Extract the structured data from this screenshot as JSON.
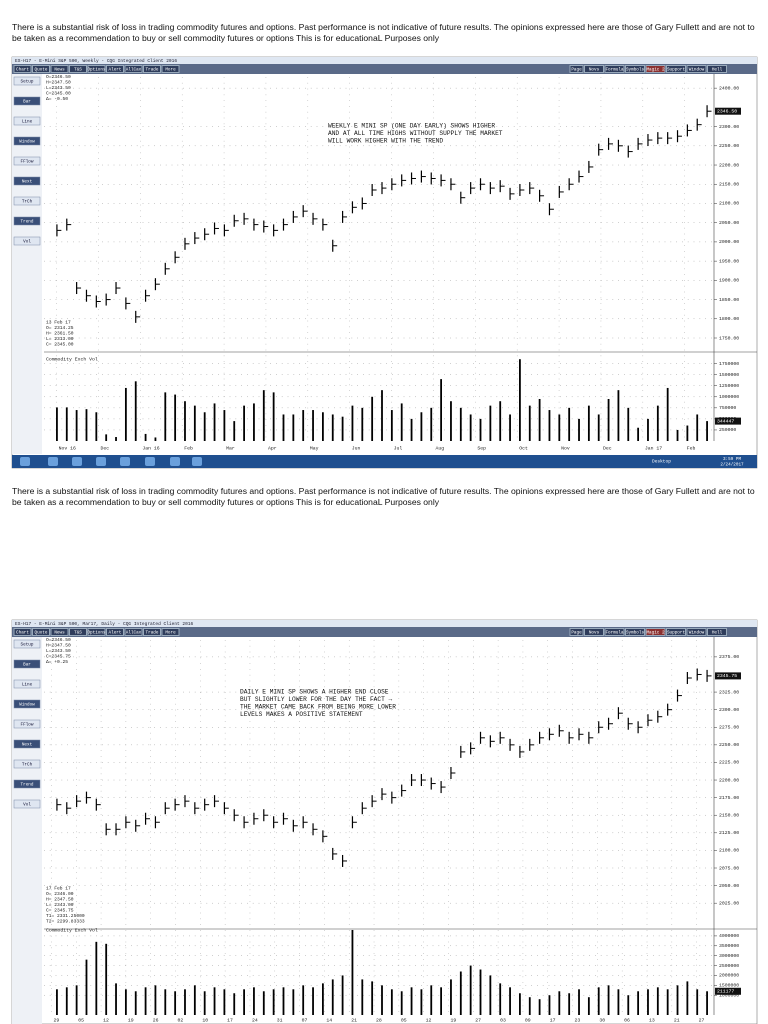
{
  "disclaimers": [
    "There is a substantial risk of loss in trading commodity futures and options.  Past performance is not indicative of future results.  The opinions expressed here are those of Gary Fullett and are not to be taken as a recommendation to buy or sell commodity futures or options  This is for educationaL Purposes only",
    "There is a substantial risk of loss in trading commodity futures and options.  Past performance is not indicative of future results.  The opinions expressed here are those of Gary Fullett and are not to be taken as a recommendation to buy or sell commodity futures or options  This is for educationaL Purposes only"
  ],
  "toolbar_left": [
    "Chart",
    "Quote",
    "News",
    "T&S",
    "Options",
    "Alert",
    "AllCax",
    "Trade",
    "More"
  ],
  "toolbar_right": [
    "Page",
    "Novs",
    "Formula",
    "Symbols",
    "Magic 2",
    "Support",
    "Window",
    "Hell"
  ],
  "side_buttons": [
    "Setup",
    "Bar",
    "Line",
    "Window",
    "FFlow",
    "Next",
    "TrCh",
    "Trend",
    "Vol"
  ],
  "taskbar": {
    "desktop": "Desktop",
    "time": "3:59 PM",
    "date": "2/24/2017"
  },
  "chart_data": [
    {
      "type": "stock",
      "title": "ES-H17 - E-Mini S&P 500, Weekly - CQG Integrated Client 2016",
      "annotation": [
        "WEEKLY E MINI SP (ONE DAY EARLY) SHOWS HIGHER",
        "AND AT ALL TIME HIGHS WITHOUT SUPPLY THE MARKET",
        "WILL WORK HIGHER WITH THE TREND"
      ],
      "info": [
        "O=2346.50",
        "H=2347.50",
        "L=2343.50",
        "C=2345.00",
        "Δ= -0.50"
      ],
      "info2": [
        "13 Feb 17",
        "O= 2314.25",
        "H= 2361.50",
        "L= 2313.00",
        "C= 2345.00"
      ],
      "last_label": "2346.50",
      "volume_title": "Commodity Exch Vol",
      "volume_last": "344447",
      "x_labels": [
        "Nov 16",
        "Dec",
        "Jan 16",
        "Feb",
        "Mar",
        "Apr",
        "May",
        "Jun",
        "Jul",
        "Aug",
        "Sep",
        "Oct",
        "Nov",
        "Dec",
        "Jan 17",
        "Feb"
      ],
      "color": "#000000",
      "values": [
        2030,
        2045,
        1880,
        1860,
        1845,
        1850,
        1880,
        1840,
        1805,
        1860,
        1890,
        1930,
        1960,
        1995,
        2010,
        2020,
        2035,
        2030,
        2055,
        2060,
        2045,
        2040,
        2030,
        2045,
        2065,
        2080,
        2060,
        2045,
        1990,
        2065,
        2090,
        2100,
        2135,
        2140,
        2150,
        2160,
        2165,
        2170,
        2165,
        2160,
        2150,
        2115,
        2140,
        2150,
        2140,
        2145,
        2125,
        2135,
        2140,
        2120,
        2085,
        2130,
        2150,
        2170,
        2195,
        2240,
        2255,
        2250,
        2235,
        2255,
        2265,
        2270,
        2270,
        2275,
        2290,
        2305,
        2340
      ],
      "volume": [
        760000,
        760000,
        700000,
        720000,
        650000,
        150000,
        90000,
        1200000,
        1350000,
        160000,
        80000,
        1100000,
        1050000,
        900000,
        800000,
        650000,
        850000,
        700000,
        450000,
        800000,
        850000,
        1150000,
        1100000,
        600000,
        600000,
        700000,
        700000,
        650000,
        600000,
        550000,
        800000,
        750000,
        1000000,
        1150000,
        700000,
        850000,
        500000,
        650000,
        750000,
        1400000,
        900000,
        750000,
        600000,
        500000,
        800000,
        900000,
        600000,
        1850000,
        800000,
        950000,
        700000,
        600000,
        750000,
        500000,
        800000,
        600000,
        950000,
        1150000,
        750000,
        300000,
        500000,
        800000,
        1200000,
        250000,
        350000,
        600000,
        450000
      ],
      "ylim": [
        1724,
        2429
      ],
      "yticks": [
        {
          "value": 1750,
          "label": "1750.00"
        },
        {
          "value": 1800,
          "label": "1800.00"
        },
        {
          "value": 1850,
          "label": "1850.00"
        },
        {
          "value": 1900,
          "label": "1900.00"
        },
        {
          "value": 1950,
          "label": "1950.00"
        },
        {
          "value": 2000,
          "label": "2000.00"
        },
        {
          "value": 2050,
          "label": "2050.00"
        },
        {
          "value": 2100,
          "label": "2100.00"
        },
        {
          "value": 2150,
          "label": "2150.00"
        },
        {
          "value": 2200,
          "label": "2200.00"
        },
        {
          "value": 2250,
          "label": "2250.00"
        },
        {
          "value": 2300,
          "label": "2300.00"
        },
        {
          "value": 2400,
          "label": "2400.00"
        }
      ],
      "vol_ylim": [
        0,
        1900000
      ],
      "vol_yticks": [
        250000,
        500000,
        750000,
        1000000,
        1250000,
        1500000,
        1750000
      ],
      "grid": true
    },
    {
      "type": "stock",
      "title": "ES-H17 - E-Mini S&P 500, Mar17, Daily - CQG Integrated Client 2016",
      "annotation": [
        "DAILY E MINI SP SHOWS A HIGHER END CLOSE",
        "BUT SLIGHTLY LOWER FOR THE DAY THE FACT  →",
        "THE MARKET CAME BACK FROM BEING MORE LOWER",
        "LEVELS MAKES A POSITIVE STATEMENT"
      ],
      "info": [
        "O=2346.50",
        "H=2347.50",
        "L=2343.50",
        "C=2345.75",
        "Δ= +0.25"
      ],
      "info2": [
        "17 Feb 17",
        "O=    2346.00",
        "H=    2347.50",
        "L=    2343.00",
        "C=    2345.75",
        "T1=  2331.25000",
        "T2=  2299.83333"
      ],
      "last_label": "2345.75",
      "volume_title": "Commodity Exch Vol",
      "volume_last": "211177",
      "x_labels": [
        "29",
        "05",
        "12",
        "19",
        "26",
        "02",
        "10",
        "17",
        "24",
        "31",
        "07",
        "14",
        "21",
        "28",
        "05",
        "12",
        "19",
        "27",
        "03",
        "09",
        "17",
        "23",
        "30",
        "06",
        "13",
        "21",
        "27"
      ],
      "color": "#000000",
      "values": [
        2165,
        2160,
        2170,
        2175,
        2165,
        2130,
        2130,
        2140,
        2135,
        2145,
        2140,
        2160,
        2165,
        2170,
        2160,
        2165,
        2170,
        2160,
        2150,
        2140,
        2145,
        2150,
        2140,
        2145,
        2135,
        2140,
        2130,
        2120,
        2095,
        2085,
        2140,
        2160,
        2170,
        2180,
        2175,
        2185,
        2200,
        2200,
        2195,
        2190,
        2210,
        2240,
        2245,
        2260,
        2255,
        2260,
        2250,
        2240,
        2250,
        2260,
        2265,
        2270,
        2260,
        2265,
        2260,
        2275,
        2280,
        2295,
        2280,
        2275,
        2285,
        2290,
        2300,
        2320,
        2345,
        2350,
        2348
      ],
      "volume": [
        1300000,
        1400000,
        1500000,
        2800000,
        3700000,
        3600000,
        1600000,
        1300000,
        1200000,
        1400000,
        1500000,
        1300000,
        1200000,
        1300000,
        1500000,
        1200000,
        1400000,
        1300000,
        1100000,
        1300000,
        1400000,
        1200000,
        1300000,
        1400000,
        1300000,
        1500000,
        1400000,
        1600000,
        1800000,
        2000000,
        4300000,
        1800000,
        1700000,
        1500000,
        1300000,
        1200000,
        1400000,
        1300000,
        1500000,
        1400000,
        1800000,
        2200000,
        2500000,
        2300000,
        2000000,
        1600000,
        1400000,
        1100000,
        900000,
        800000,
        1000000,
        1200000,
        1100000,
        1300000,
        900000,
        1400000,
        1500000,
        1300000,
        1000000,
        1200000,
        1300000,
        1400000,
        1300000,
        1500000,
        1700000,
        1300000,
        1200000
      ],
      "ylim": [
        1994,
        2399
      ],
      "yticks": [
        {
          "value": 2025,
          "label": "2025.00"
        },
        {
          "value": 2050,
          "label": "2050.00"
        },
        {
          "value": 2075,
          "label": "2075.00"
        },
        {
          "value": 2100,
          "label": "2100.00"
        },
        {
          "value": 2125,
          "label": "2125.00"
        },
        {
          "value": 2150,
          "label": "2150.00"
        },
        {
          "value": 2175,
          "label": "2175.00"
        },
        {
          "value": 2200,
          "label": "2200.00"
        },
        {
          "value": 2225,
          "label": "2225.00"
        },
        {
          "value": 2250,
          "label": "2250.00"
        },
        {
          "value": 2275,
          "label": "2275.00"
        },
        {
          "value": 2300,
          "label": "2300.00"
        },
        {
          "value": 2325,
          "label": "2325.00"
        },
        {
          "value": 2375,
          "label": "2375.00"
        }
      ],
      "vol_ylim": [
        0,
        4400000
      ],
      "vol_yticks": [
        1000000,
        1500000,
        2000000,
        2500000,
        3000000,
        3500000,
        4000000
      ],
      "grid": true
    }
  ]
}
